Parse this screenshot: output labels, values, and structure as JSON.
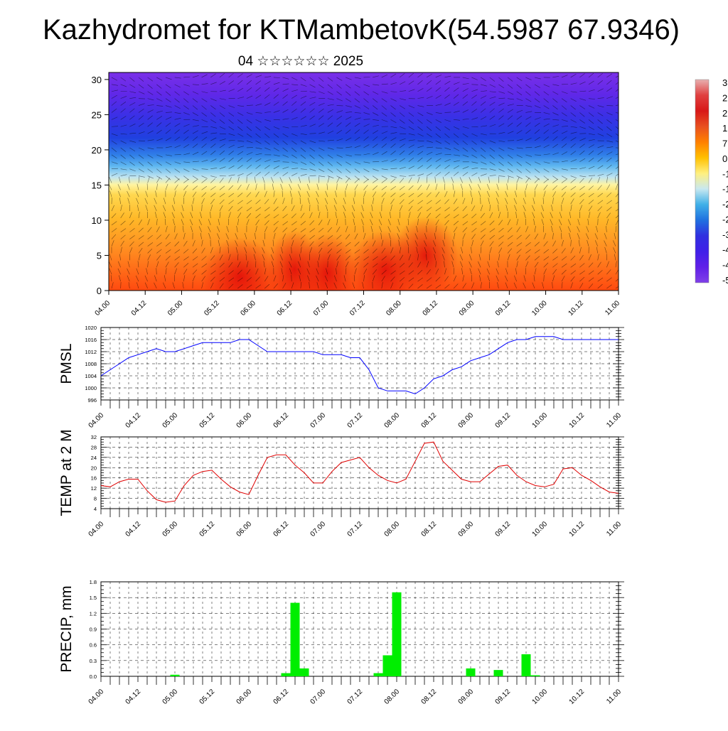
{
  "title": "Kazhydromet for KTMambetovK(54.5987 67.9346)",
  "subtitle": "04 ☆☆☆☆☆☆ 2025",
  "x_tick_labels": [
    "04.00",
    "04.12",
    "05.00",
    "05.12",
    "06.00",
    "06.12",
    "07.00",
    "07.12",
    "08.00",
    "08.12",
    "09.00",
    "09.12",
    "10.00",
    "10.12",
    "11.00"
  ],
  "colorbar": {
    "visible_labels": [
      "3",
      "2",
      "2",
      "1",
      "7",
      "0",
      "-1",
      "-1",
      "-2",
      "-2",
      "-3",
      "-4",
      "-4",
      "-5"
    ],
    "colors": [
      "#e8b0b0",
      "#e04040",
      "#d81818",
      "#e85020",
      "#ff8000",
      "#ffc000",
      "#fff080",
      "#c8e8f0",
      "#40b0e8",
      "#2070e0",
      "#3030e0",
      "#4020e8",
      "#6020e8",
      "#8040e8"
    ]
  },
  "chart_data": [
    {
      "type": "heatmap",
      "title": "04 ☆☆☆☆☆☆ 2025",
      "ylabel": "",
      "ylim": [
        0,
        31
      ],
      "yticks": [
        0,
        5,
        10,
        15,
        20,
        25,
        30
      ],
      "xlim": [
        0,
        7
      ],
      "colors": {
        "surface": "#ff5010",
        "low": "#ff9020",
        "mid": "#ffc030",
        "freeze": "#fff090",
        "cool": "#b8e0f0",
        "cold": "#40a0f0",
        "upper": "#2040e0",
        "top": "#6020e0",
        "hot_cores": "#e81010"
      },
      "overlay": "wind barbs"
    },
    {
      "type": "line",
      "ylabel": "PMSL",
      "ylim": [
        996,
        1020
      ],
      "yticks": [
        996,
        1000,
        1004,
        1008,
        1012,
        1016,
        1020
      ],
      "color": "#0000ff",
      "x": [
        0,
        0.125,
        0.25,
        0.375,
        0.5,
        0.625,
        0.75,
        0.875,
        1,
        1.125,
        1.25,
        1.375,
        1.5,
        1.625,
        1.75,
        1.875,
        2,
        2.125,
        2.25,
        2.375,
        2.5,
        2.625,
        2.75,
        2.875,
        3,
        3.125,
        3.25,
        3.375,
        3.5,
        3.625,
        3.75,
        3.875,
        4,
        4.125,
        4.25,
        4.375,
        4.5,
        4.625,
        4.75,
        4.875,
        5,
        5.125,
        5.25,
        5.375,
        5.5,
        5.625,
        5.75,
        5.875,
        6,
        6.125,
        6.25,
        6.375,
        6.5,
        6.625,
        6.75,
        6.875,
        7
      ],
      "values": [
        1004,
        1006,
        1008,
        1010,
        1011,
        1012,
        1013,
        1012,
        1012,
        1013,
        1014,
        1015,
        1015,
        1015,
        1015,
        1016,
        1016,
        1014,
        1012,
        1012,
        1012,
        1012,
        1012,
        1012,
        1011,
        1011,
        1011,
        1010,
        1010,
        1006,
        1000,
        999,
        999,
        999,
        998,
        1000,
        1003,
        1004,
        1006,
        1007,
        1009,
        1010,
        1011,
        1013,
        1015,
        1016,
        1016,
        1017,
        1017,
        1017,
        1016,
        1016,
        1016,
        1016,
        1016,
        1016,
        1016
      ]
    },
    {
      "type": "line",
      "ylabel": "TEMP at 2 M",
      "ylim": [
        4,
        32
      ],
      "yticks": [
        4,
        8,
        12,
        16,
        20,
        24,
        28,
        32
      ],
      "color": "#e00000",
      "x": [
        0,
        0.125,
        0.25,
        0.375,
        0.5,
        0.625,
        0.75,
        0.875,
        1,
        1.125,
        1.25,
        1.375,
        1.5,
        1.625,
        1.75,
        1.875,
        2,
        2.125,
        2.25,
        2.375,
        2.5,
        2.625,
        2.75,
        2.875,
        3,
        3.125,
        3.25,
        3.375,
        3.5,
        3.625,
        3.75,
        3.875,
        4,
        4.125,
        4.25,
        4.375,
        4.5,
        4.625,
        4.75,
        4.875,
        5,
        5.125,
        5.25,
        5.375,
        5.5,
        5.625,
        5.75,
        5.875,
        6,
        6.125,
        6.25,
        6.375,
        6.5,
        6.625,
        6.75,
        6.875,
        7
      ],
      "values": [
        13,
        12.5,
        14.5,
        15.5,
        15.5,
        11,
        7.5,
        6.5,
        7,
        13,
        17,
        18.5,
        19,
        15.5,
        12.5,
        10.5,
        9.5,
        17,
        24,
        25,
        25,
        21,
        18,
        14,
        14,
        18.5,
        22,
        23,
        24,
        20,
        17,
        15,
        14,
        15.5,
        22.5,
        29.5,
        30,
        22.5,
        19,
        15.5,
        14.5,
        14.5,
        17.5,
        20.5,
        21,
        17,
        14.5,
        13,
        12.5,
        13.5,
        19.5,
        20,
        17,
        15,
        12.5,
        10.5,
        10
      ]
    },
    {
      "type": "bar",
      "ylabel": "PRECIP, mm",
      "ylim": [
        0,
        1.8
      ],
      "yticks": [
        "0.0",
        "0.3",
        "0.6",
        "0.9",
        "1.2",
        "1.5",
        "1.8"
      ],
      "color": "#00ee00",
      "bar_width_x": 0.125,
      "x": [
        1.0,
        2.5,
        2.625,
        2.75,
        3.75,
        3.875,
        4.0,
        5.0,
        5.375,
        5.75,
        5.875
      ],
      "values": [
        0.03,
        0.06,
        1.4,
        0.15,
        0.06,
        0.4,
        1.6,
        0.15,
        0.12,
        0.42,
        0.02
      ]
    }
  ]
}
